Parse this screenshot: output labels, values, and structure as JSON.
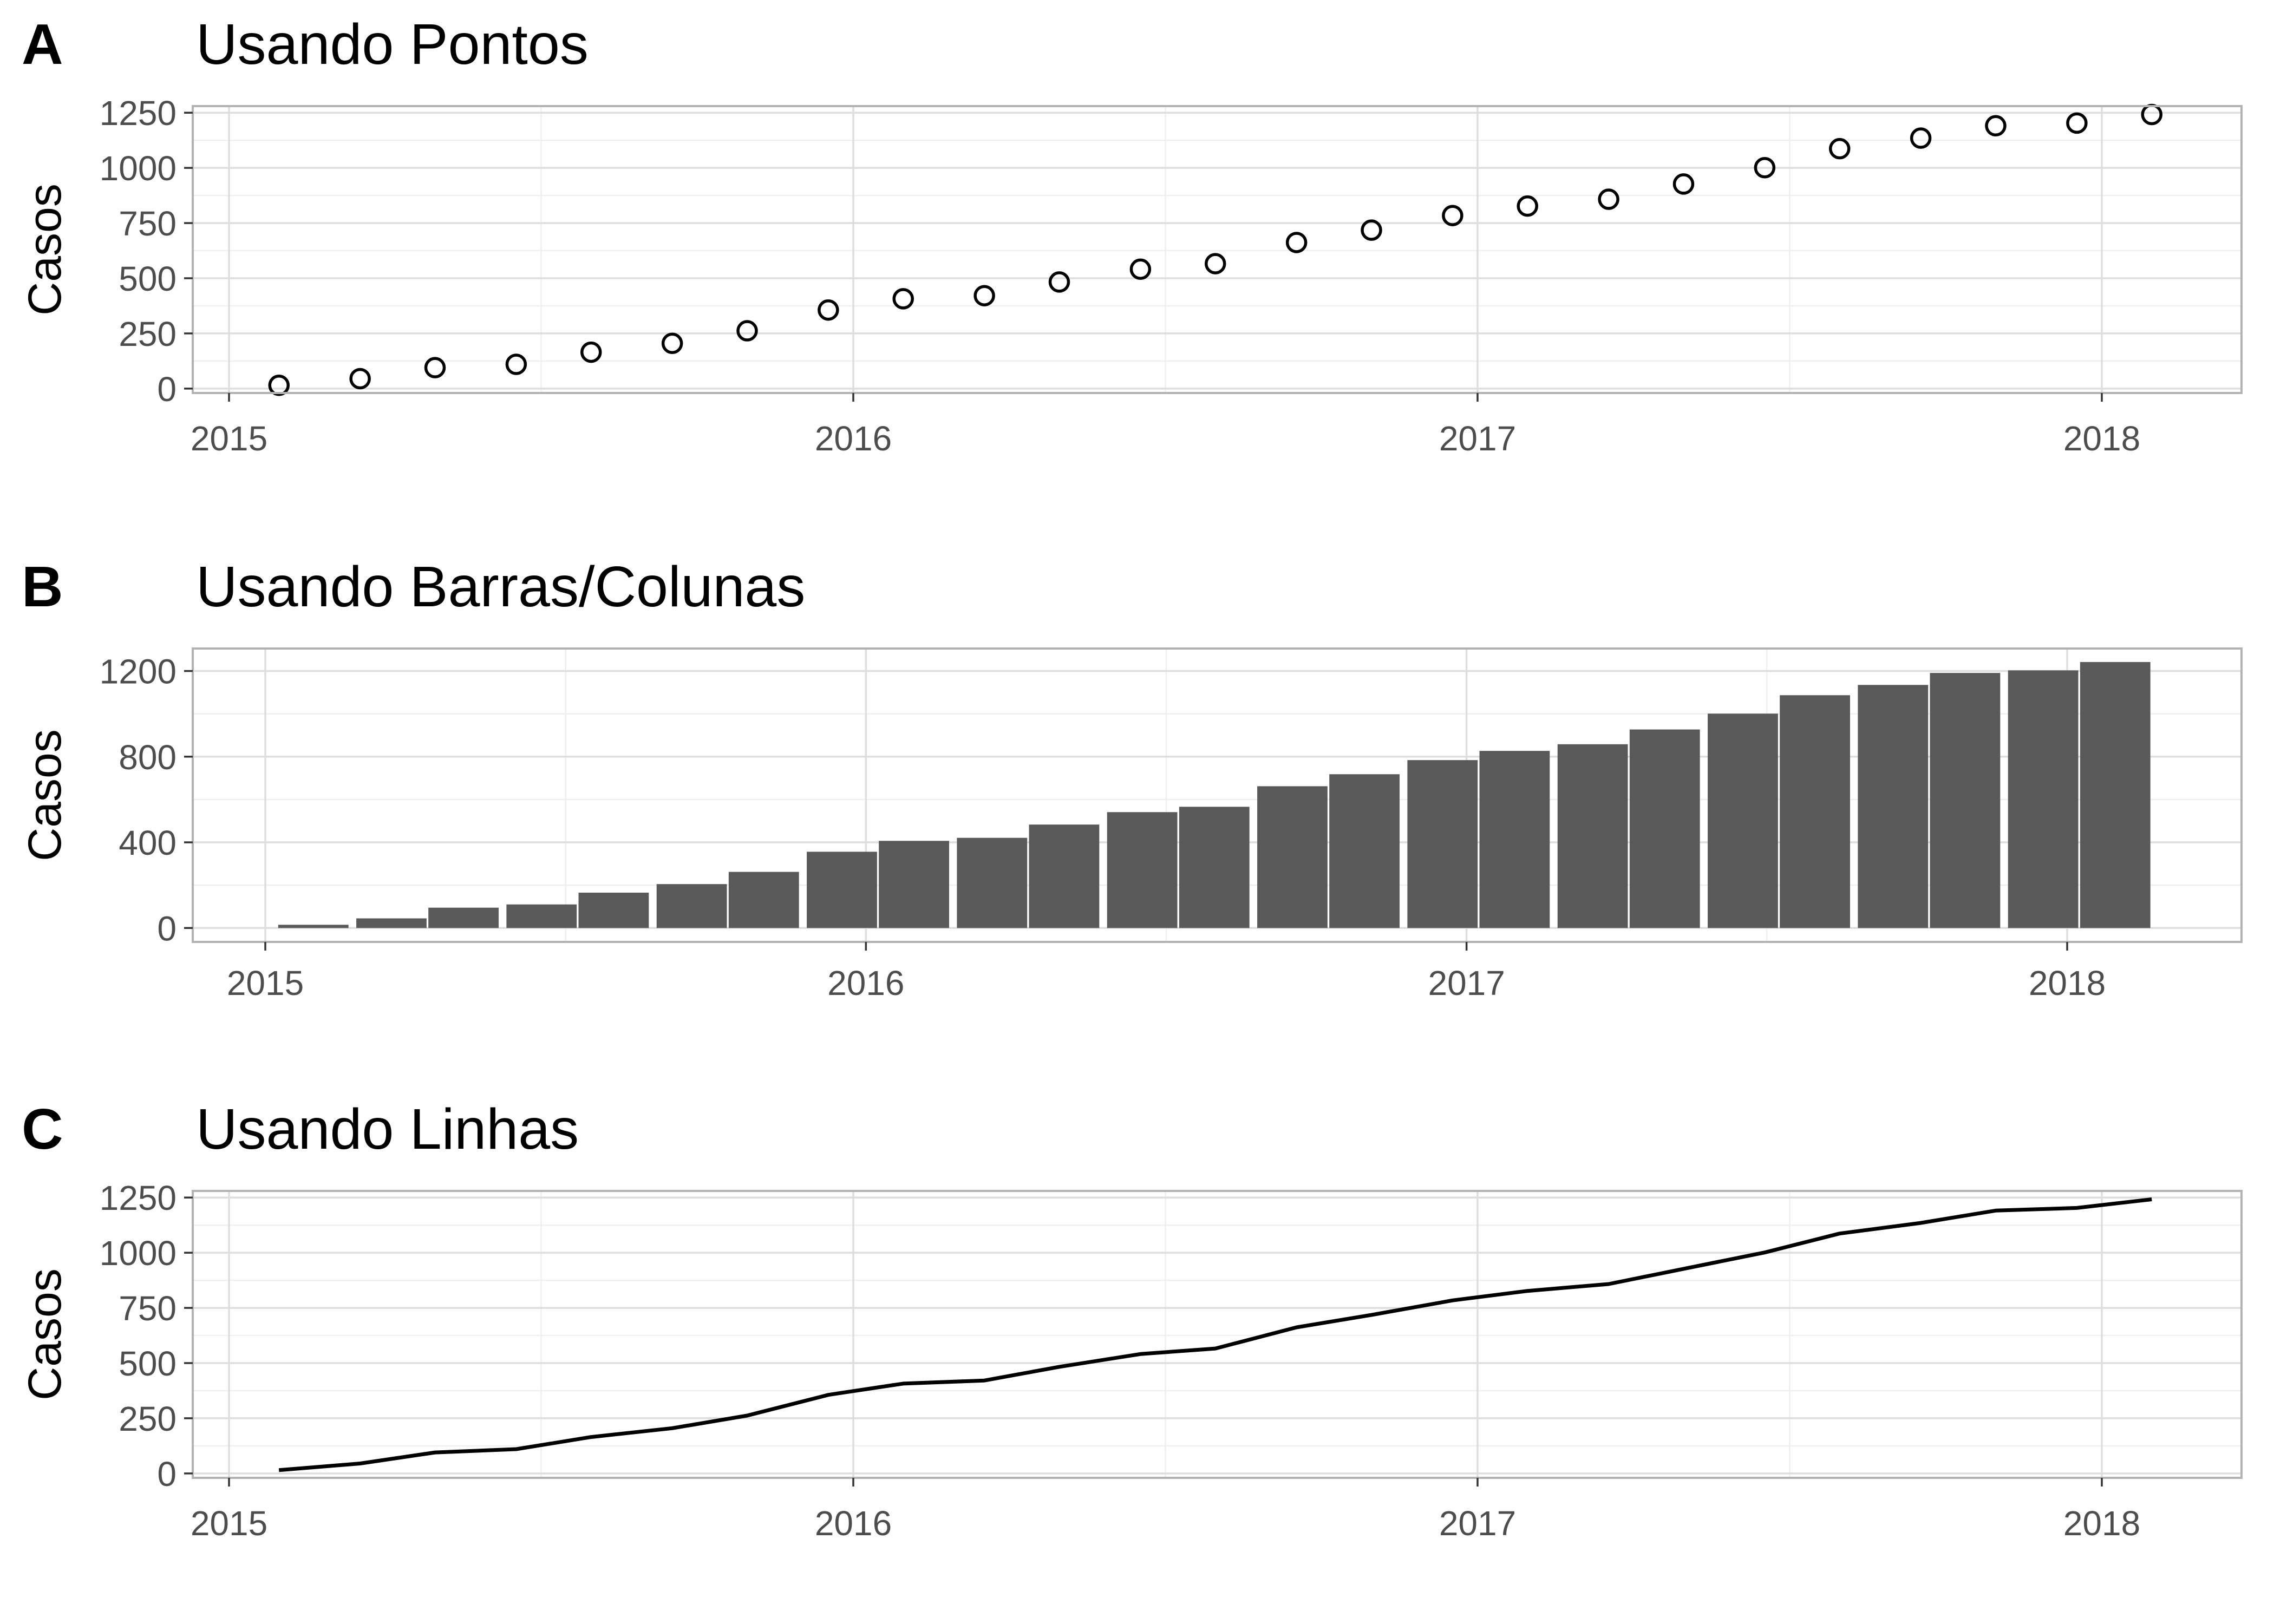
{
  "chart_data": [
    {
      "type": "scatter",
      "panel_letter": "A",
      "title": "Usando Pontos",
      "xlabel": "",
      "ylabel": "Casos",
      "x_ticks": [
        "2015",
        "2016",
        "2017",
        "2018"
      ],
      "y_ticks": [
        "0",
        "250",
        "500",
        "750",
        "1000",
        "1250"
      ],
      "ylim": [
        -20,
        1280
      ],
      "series": [
        {
          "name": "Casos",
          "x": [
            2015.08,
            2015.21,
            2015.33,
            2015.46,
            2015.58,
            2015.71,
            2015.83,
            2015.96,
            2016.08,
            2016.21,
            2016.33,
            2016.46,
            2016.58,
            2016.71,
            2016.83,
            2016.96,
            2017.08,
            2017.21,
            2017.33,
            2017.46,
            2017.58,
            2017.71,
            2017.83,
            2017.96,
            2018.08
          ],
          "values": [
            15,
            45,
            95,
            110,
            165,
            205,
            262,
            356,
            407,
            421,
            483,
            541,
            566,
            662,
            718,
            784,
            827,
            858,
            927,
            1001,
            1087,
            1135,
            1191,
            1203,
            1242
          ]
        }
      ]
    },
    {
      "type": "bar",
      "panel_letter": "B",
      "title": "Usando Barras/Colunas",
      "xlabel": "",
      "ylabel": "Casos",
      "x_ticks": [
        "2015",
        "2016",
        "2017",
        "2018"
      ],
      "y_ticks": [
        "0",
        "400",
        "800",
        "1200"
      ],
      "ylim": [
        -65,
        1305
      ],
      "series": [
        {
          "name": "Casos",
          "x": [
            2015.08,
            2015.21,
            2015.33,
            2015.46,
            2015.58,
            2015.71,
            2015.83,
            2015.96,
            2016.08,
            2016.21,
            2016.33,
            2016.46,
            2016.58,
            2016.71,
            2016.83,
            2016.96,
            2017.08,
            2017.21,
            2017.33,
            2017.46,
            2017.58,
            2017.71,
            2017.83,
            2017.96,
            2018.08
          ],
          "values": [
            15,
            45,
            95,
            110,
            165,
            205,
            262,
            356,
            407,
            421,
            483,
            541,
            566,
            662,
            718,
            784,
            827,
            858,
            927,
            1001,
            1087,
            1135,
            1191,
            1203,
            1242
          ]
        }
      ]
    },
    {
      "type": "line",
      "panel_letter": "C",
      "title": "Usando Linhas",
      "xlabel": "",
      "ylabel": "Casos",
      "x_ticks": [
        "2015",
        "2016",
        "2017",
        "2018"
      ],
      "y_ticks": [
        "0",
        "250",
        "500",
        "750",
        "1000",
        "1250"
      ],
      "ylim": [
        -20,
        1280
      ],
      "series": [
        {
          "name": "Casos",
          "x": [
            2015.08,
            2015.21,
            2015.33,
            2015.46,
            2015.58,
            2015.71,
            2015.83,
            2015.96,
            2016.08,
            2016.21,
            2016.33,
            2016.46,
            2016.58,
            2016.71,
            2016.83,
            2016.96,
            2017.08,
            2017.21,
            2017.33,
            2017.46,
            2017.58,
            2017.71,
            2017.83,
            2017.96,
            2018.08
          ],
          "values": [
            15,
            45,
            95,
            110,
            165,
            205,
            262,
            356,
            407,
            421,
            483,
            541,
            566,
            662,
            718,
            784,
            827,
            858,
            927,
            1001,
            1087,
            1135,
            1191,
            1203,
            1242
          ]
        }
      ]
    }
  ],
  "colors": {
    "point_stroke": "#000000",
    "bar_fill": "#595959",
    "line_stroke": "#000000"
  }
}
